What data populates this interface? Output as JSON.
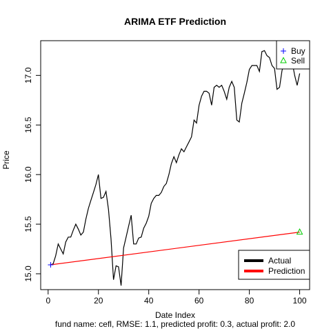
{
  "chart_data": {
    "type": "line",
    "title": "ARIMA ETF Prediction",
    "xlabel": "Date Index",
    "ylabel": "Price",
    "subtitle": "fund name: cefl, RMSE: 1.1, predicted profit: 0.3, actual profit: 2.0",
    "xlim": [
      -2.96,
      103.96
    ],
    "ylim": [
      14.84,
      17.35
    ],
    "x_ticks": [
      0,
      20,
      40,
      60,
      80,
      100
    ],
    "y_ticks": [
      15.0,
      15.5,
      16.0,
      16.5,
      17.0
    ],
    "x_tick_labels": [
      "0",
      "20",
      "40",
      "60",
      "80",
      "100"
    ],
    "y_tick_labels": [
      "15.0",
      "15.5",
      "16.0",
      "16.5",
      "17.0"
    ],
    "grid": false,
    "series": [
      {
        "name": "Actual",
        "color": "#000000",
        "x": [
          1,
          2,
          3,
          4,
          5,
          6,
          7,
          8,
          9,
          10,
          11,
          12,
          13,
          14,
          15,
          16,
          17,
          18,
          19,
          20,
          21,
          22,
          23,
          24,
          25,
          26,
          27,
          28,
          29,
          30,
          31,
          32,
          33,
          34,
          35,
          36,
          37,
          38,
          39,
          40,
          41,
          42,
          43,
          44,
          45,
          46,
          47,
          48,
          49,
          50,
          51,
          52,
          53,
          54,
          55,
          56,
          57,
          58,
          59,
          60,
          61,
          62,
          63,
          64,
          65,
          66,
          67,
          68,
          69,
          70,
          71,
          72,
          73,
          74,
          75,
          76,
          77,
          78,
          79,
          80,
          81,
          82,
          83,
          84,
          85,
          86,
          87,
          88,
          89,
          90,
          91,
          92,
          93,
          94,
          95,
          96,
          97,
          98,
          99,
          100
        ],
        "values": [
          15.09,
          15.1,
          15.18,
          15.3,
          15.25,
          15.2,
          15.32,
          15.37,
          15.37,
          15.44,
          15.5,
          15.45,
          15.39,
          15.42,
          15.55,
          15.66,
          15.74,
          15.82,
          15.9,
          16.0,
          15.76,
          15.77,
          15.83,
          15.65,
          15.35,
          14.94,
          15.08,
          15.07,
          14.88,
          15.26,
          15.37,
          15.48,
          15.59,
          15.3,
          15.3,
          15.36,
          15.37,
          15.46,
          15.51,
          15.58,
          15.71,
          15.76,
          15.79,
          15.79,
          15.82,
          15.88,
          15.91,
          16.0,
          16.11,
          16.18,
          16.12,
          16.2,
          16.26,
          16.23,
          16.28,
          16.33,
          16.38,
          16.55,
          16.52,
          16.7,
          16.79,
          16.84,
          16.84,
          16.82,
          16.7,
          16.88,
          16.9,
          16.88,
          16.9,
          16.84,
          16.76,
          16.88,
          16.94,
          16.88,
          16.55,
          16.53,
          16.72,
          16.82,
          16.93,
          17.06,
          17.1,
          17.1,
          17.1,
          17.04,
          17.24,
          17.25,
          17.2,
          17.18,
          17.1,
          17.07,
          16.86,
          16.88,
          17.05,
          17.12,
          17.18,
          17.2,
          17.14,
          17.0,
          16.9,
          17.02
        ]
      },
      {
        "name": "Prediction",
        "color": "#ff0000",
        "x": [
          1,
          100
        ],
        "values": [
          15.09,
          15.42
        ]
      }
    ],
    "markers": [
      {
        "name": "Buy",
        "symbol": "+",
        "color": "#0000ff",
        "x": 1,
        "y": 15.09
      },
      {
        "name": "Sell",
        "symbol": "triangle",
        "color": "#00cc00",
        "x": 100,
        "y": 15.42
      }
    ],
    "legends": [
      {
        "placement": "top-right",
        "entries": [
          {
            "label": "Buy",
            "symbol": "+",
            "color": "#0000ff"
          },
          {
            "label": "Sell",
            "symbol": "triangle",
            "color": "#00cc00"
          }
        ]
      },
      {
        "placement": "bottom-right",
        "entries": [
          {
            "label": "Actual",
            "symbol": "line",
            "color": "#000000"
          },
          {
            "label": "Prediction",
            "symbol": "line",
            "color": "#ff0000"
          }
        ]
      }
    ]
  }
}
